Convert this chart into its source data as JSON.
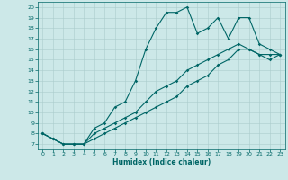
{
  "xlabel": "Humidex (Indice chaleur)",
  "background_color": "#cce8e8",
  "line_color": "#006666",
  "grid_color": "#aacccc",
  "xlim": [
    -0.5,
    23.5
  ],
  "ylim": [
    6.5,
    20.5
  ],
  "xticks": [
    0,
    1,
    2,
    3,
    4,
    5,
    6,
    7,
    8,
    9,
    10,
    11,
    12,
    13,
    14,
    15,
    16,
    17,
    18,
    19,
    20,
    21,
    22,
    23
  ],
  "yticks": [
    7,
    8,
    9,
    10,
    11,
    12,
    13,
    14,
    15,
    16,
    17,
    18,
    19,
    20
  ],
  "line1_x": [
    0,
    1,
    2,
    3,
    4,
    5,
    6,
    7,
    8,
    9,
    10,
    11,
    12,
    13,
    14,
    15,
    16,
    17,
    18,
    19,
    20,
    21,
    22,
    23
  ],
  "line1_y": [
    8,
    7.5,
    7,
    7,
    7,
    8.5,
    9,
    10.5,
    11,
    13,
    16,
    18,
    19.5,
    19.5,
    20,
    17.5,
    18,
    19,
    17,
    19,
    19,
    16.5,
    16,
    15.5
  ],
  "line2_x": [
    0,
    1,
    2,
    3,
    4,
    5,
    6,
    7,
    8,
    9,
    10,
    11,
    12,
    13,
    14,
    15,
    16,
    17,
    18,
    19,
    20,
    21,
    22,
    23
  ],
  "line2_y": [
    8,
    7.5,
    7,
    7,
    7,
    8,
    8.5,
    9,
    9.5,
    10,
    11,
    12,
    12.5,
    13,
    14,
    14.5,
    15,
    15.5,
    16,
    16.5,
    16,
    15.5,
    15,
    15.5
  ],
  "line3_x": [
    0,
    1,
    2,
    3,
    4,
    5,
    6,
    7,
    8,
    9,
    10,
    11,
    12,
    13,
    14,
    15,
    16,
    17,
    18,
    19,
    20,
    21,
    22,
    23
  ],
  "line3_y": [
    8,
    7.5,
    7,
    7,
    7,
    7.5,
    8,
    8.5,
    9,
    9.5,
    10,
    10.5,
    11,
    11.5,
    12.5,
    13,
    13.5,
    14.5,
    15,
    16,
    16,
    15.5,
    15.5,
    15.5
  ]
}
